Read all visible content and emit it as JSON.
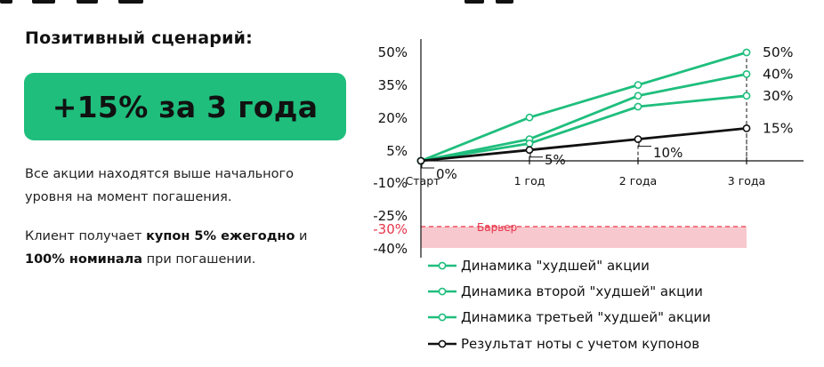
{
  "scenario_title": "Позитивный сценарий:",
  "result_box": "+15% за 3 года",
  "description": {
    "line1": "Все акции находятся выше начального уровня на момент погашения.",
    "line2_prefix": "Клиент получает ",
    "line2_bold1": "купон 5% ежегодно",
    "line2_mid": " и ",
    "line2_bold2": "100% номинала",
    "line2_suffix": " при погашении."
  },
  "chart_data": {
    "type": "line",
    "categories": [
      "Старт",
      "1 год",
      "2 года",
      "3 года"
    ],
    "y_ticks": [
      "50%",
      "35%",
      "20%",
      "5%",
      "-10%",
      "-25%",
      "-30%",
      "-40%"
    ],
    "ylim": [
      -40,
      50
    ],
    "barrier": {
      "label": "Барьер",
      "value": -30
    },
    "series": [
      {
        "name": "Динамика \"худшей\" акции",
        "values": [
          0,
          20,
          35,
          50
        ],
        "end_label": "50%",
        "color": "#1fbe7d"
      },
      {
        "name": "Динамика второй \"худшей\" акции",
        "values": [
          0,
          10,
          30,
          40
        ],
        "end_label": "40%",
        "color": "#1fbe7d"
      },
      {
        "name": "Динамика третьей \"худшей\" акции",
        "values": [
          0,
          8,
          25,
          30
        ],
        "end_label": "30%",
        "color": "#1fbe7d"
      },
      {
        "name": "Результат ноты с учетом купонов",
        "values": [
          0,
          5,
          10,
          15
        ],
        "end_label": "15%",
        "color": "#111111"
      }
    ],
    "point_labels": [
      "0%",
      "5%",
      "10%"
    ],
    "colors": {
      "positive": "#1fbe7d",
      "note": "#111111",
      "barrier": "#e8344a",
      "barrier_zone": "#f7c8cd"
    }
  }
}
